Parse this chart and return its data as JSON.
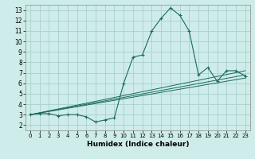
{
  "title": "",
  "xlabel": "Humidex (Indice chaleur)",
  "ylabel": "",
  "bg_color": "#ceecea",
  "grid_color": "#aacfcc",
  "line_color": "#1a6b5e",
  "xlim": [
    -0.5,
    23.5
  ],
  "ylim": [
    1.5,
    13.5
  ],
  "xticks": [
    0,
    1,
    2,
    3,
    4,
    5,
    6,
    7,
    8,
    9,
    10,
    11,
    12,
    13,
    14,
    15,
    16,
    17,
    18,
    19,
    20,
    21,
    22,
    23
  ],
  "yticks": [
    2,
    3,
    4,
    5,
    6,
    7,
    8,
    9,
    10,
    11,
    12,
    13
  ],
  "main_series": {
    "x": [
      0,
      1,
      2,
      3,
      4,
      5,
      6,
      7,
      8,
      9,
      10,
      11,
      12,
      13,
      14,
      15,
      16,
      17,
      18,
      19,
      20,
      21,
      22,
      23
    ],
    "y": [
      3.0,
      3.1,
      3.1,
      2.9,
      3.0,
      3.0,
      2.8,
      2.3,
      2.5,
      2.7,
      6.0,
      8.5,
      8.7,
      11.0,
      12.2,
      13.2,
      12.5,
      11.0,
      6.8,
      7.5,
      6.2,
      7.2,
      7.2,
      6.7
    ]
  },
  "line_series": [
    {
      "x": [
        0,
        23
      ],
      "y": [
        3.0,
        6.8
      ]
    },
    {
      "x": [
        0,
        23
      ],
      "y": [
        3.0,
        7.2
      ]
    },
    {
      "x": [
        0,
        23
      ],
      "y": [
        3.0,
        6.5
      ]
    }
  ]
}
